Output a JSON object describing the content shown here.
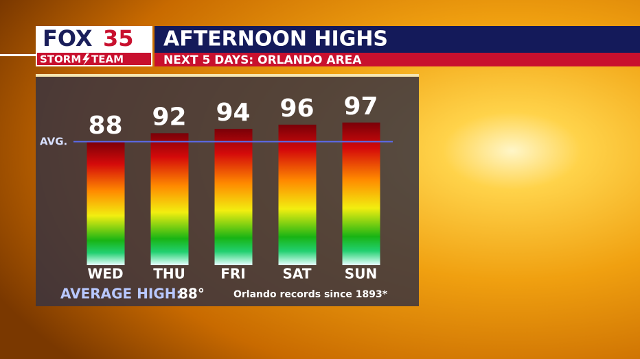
{
  "chart_data": {
    "type": "bar",
    "logo": {
      "network": "FOX",
      "channel": "35",
      "team_left": "STORM",
      "team_right": "TEAM"
    },
    "title": "AFTERNOON HIGHS",
    "subtitle": "NEXT 5 DAYS: ORLANDO AREA",
    "categories": [
      "WED",
      "THU",
      "FRI",
      "SAT",
      "SUN"
    ],
    "values": [
      88,
      92,
      94,
      96,
      97
    ],
    "ylim": [
      30,
      100
    ],
    "avg_label": "AVG.",
    "average_label": "AVERAGE HIGH:",
    "average_high": {
      "value": 88,
      "label": "88°"
    },
    "footnote": "Orlando records since 1893*"
  }
}
